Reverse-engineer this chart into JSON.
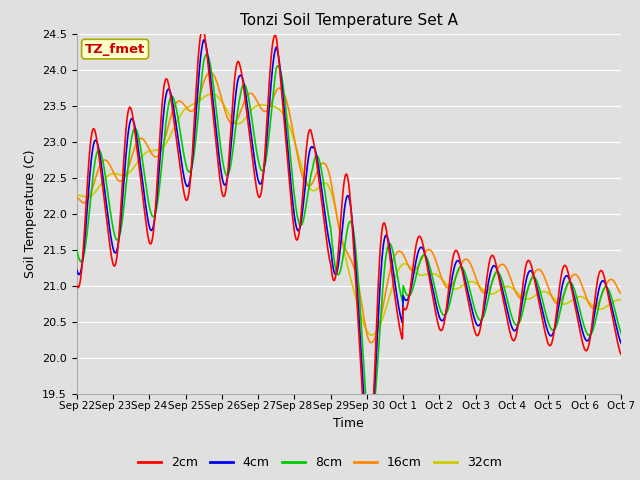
{
  "title": "Tonzi Soil Temperature Set A",
  "xlabel": "Time",
  "ylabel": "Soil Temperature (C)",
  "ylim": [
    19.5,
    24.5
  ],
  "annotation": "TZ_fmet",
  "line_colors": {
    "2cm": "#FF0000",
    "4cm": "#0000EE",
    "8cm": "#00CC00",
    "16cm": "#FF8800",
    "32cm": "#CCCC00"
  },
  "bg_color": "#E0E0E0",
  "tick_labels": [
    "Sep 22",
    "Sep 23",
    "Sep 24",
    "Sep 25",
    "Sep 26",
    "Sep 27",
    "Sep 28",
    "Sep 29",
    "Sep 30",
    "Oct 1",
    "Oct 2",
    "Oct 3",
    "Oct 4",
    "Oct 5",
    "Oct 6",
    "Oct 7"
  ],
  "legend_entries": [
    "2cm",
    "4cm",
    "8cm",
    "16cm",
    "32cm"
  ]
}
